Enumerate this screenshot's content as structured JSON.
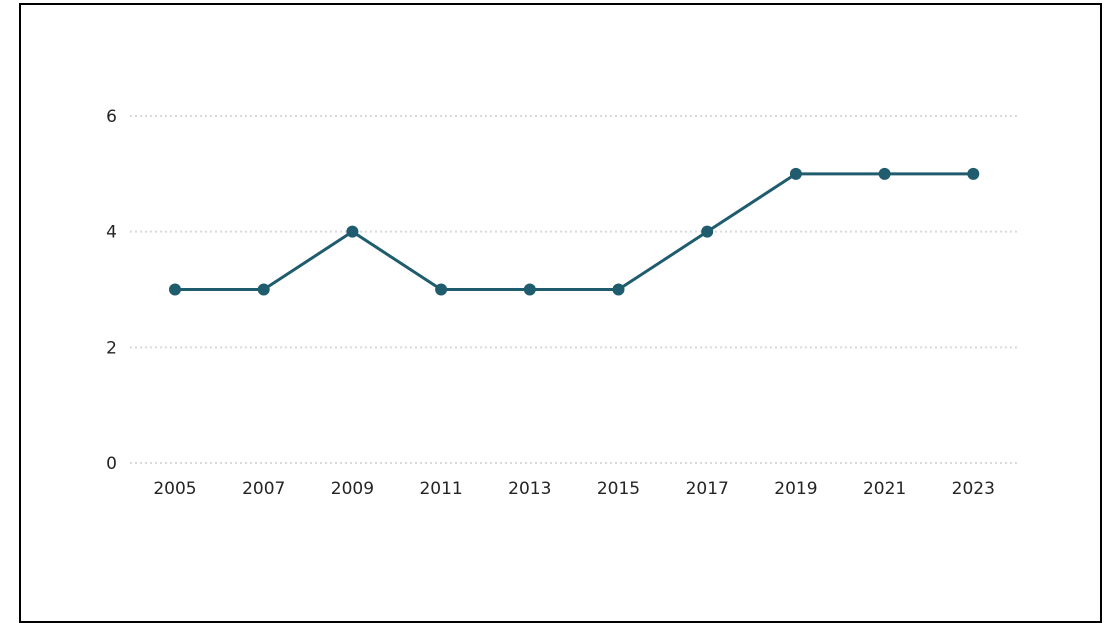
{
  "chart_data": {
    "type": "line",
    "title": "",
    "xlabel": "",
    "ylabel": "",
    "x": [
      "2005",
      "2007",
      "2009",
      "2011",
      "2013",
      "2015",
      "2017",
      "2019",
      "2021",
      "2023"
    ],
    "series": [
      {
        "values": [
          3,
          3,
          4,
          3,
          3,
          3,
          4,
          5,
          5,
          5
        ],
        "color": "#1f5c6e"
      }
    ],
    "ylim": [
      0,
      6
    ],
    "yticks": [
      0,
      2,
      4,
      6
    ],
    "grid": "horizontal-dotted",
    "gridline_color": "#d9d9d9"
  }
}
